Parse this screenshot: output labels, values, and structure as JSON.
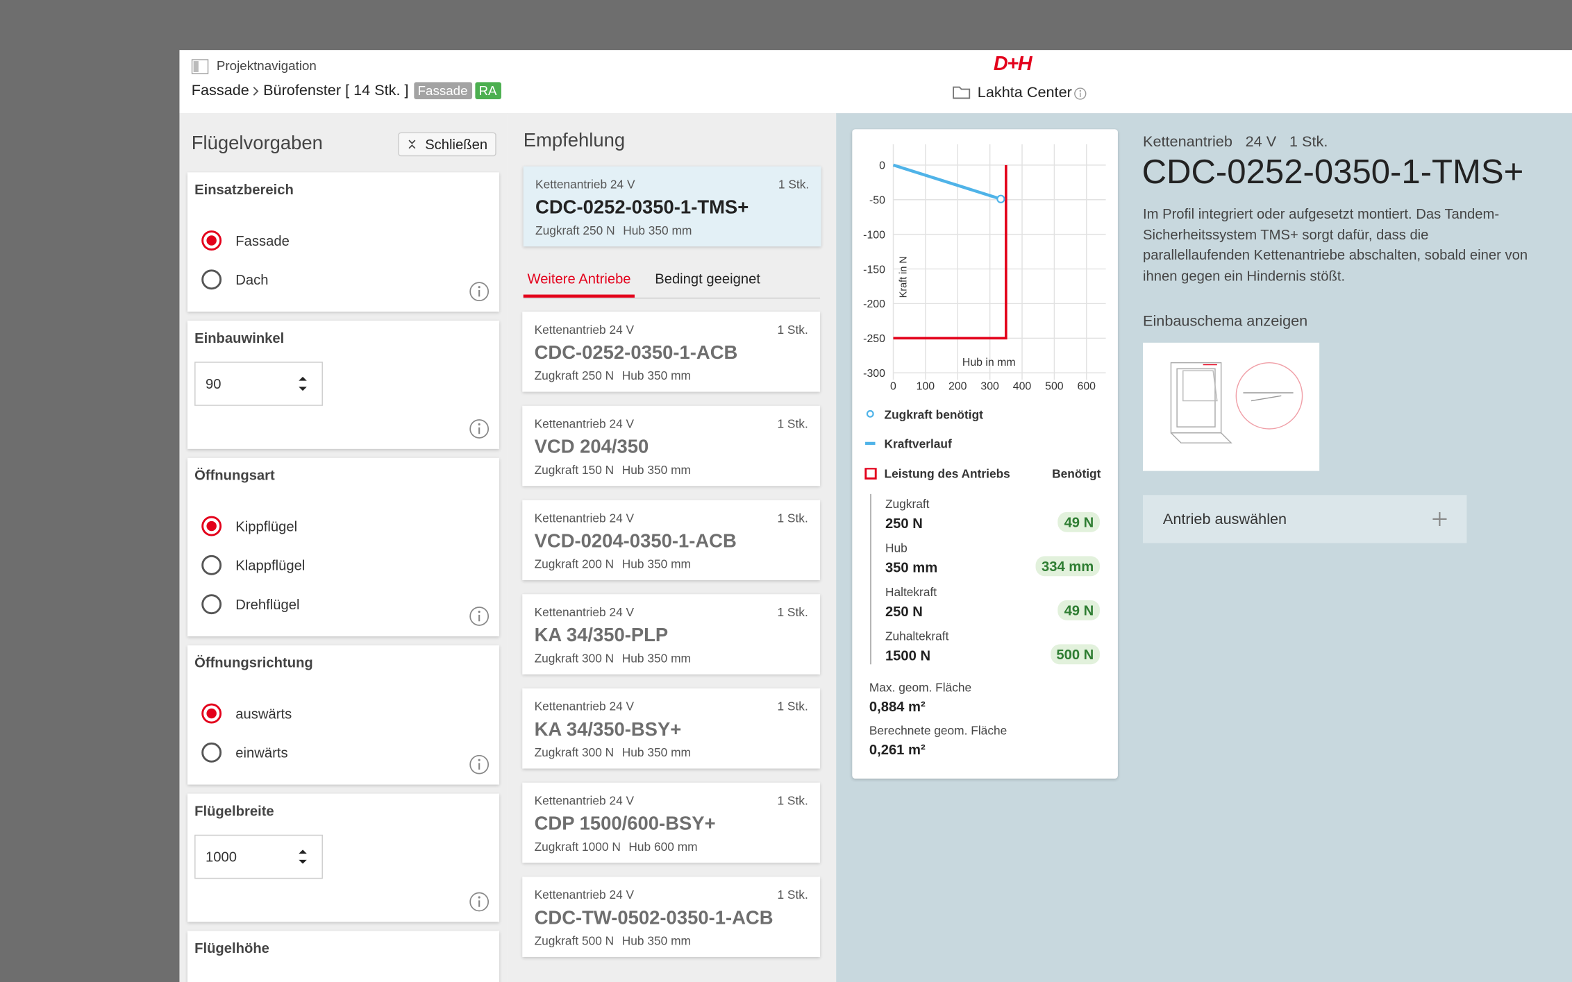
{
  "header": {
    "nav_label": "Projektnavigation",
    "breadcrumb": [
      "Fassade",
      "Bürofenster [ 14 Stk. ]"
    ],
    "tags": [
      {
        "label": "Fassade",
        "color": "#a3a3a3"
      },
      {
        "label": "RA",
        "color": "#4caf50"
      }
    ],
    "logo": "D+H",
    "project": "Lakhta Center"
  },
  "sidebar": {
    "title": "Flügelvorgaben",
    "close_button": "Schließen",
    "sections": [
      {
        "title": "Einsatzbereich",
        "options": [
          "Fassade",
          "Dach"
        ],
        "selected": 0
      },
      {
        "title": "Einbauwinkel",
        "input": "90"
      },
      {
        "title": "Öffnungsart",
        "options": [
          "Kippflügel",
          "Klappflügel",
          "Drehflügel"
        ],
        "selected": 0
      },
      {
        "title": "Öffnungsrichtung",
        "options": [
          "auswärts",
          "einwärts"
        ],
        "selected": 0
      },
      {
        "title": "Flügelbreite",
        "input": "1000"
      },
      {
        "title": "Flügelhöhe"
      }
    ]
  },
  "recommendation": {
    "title": "Empfehlung",
    "item": {
      "type": "Kettenantrieb 24 V",
      "quantity": "1 Stk.",
      "name": "CDC-0252-0350-1-TMS+",
      "pull": "Zugkraft 250 N",
      "stroke": "Hub 350 mm"
    }
  },
  "tabs": {
    "items": [
      "Weitere Antriebe",
      "Bedingt geeignet"
    ],
    "active": 0
  },
  "drives": [
    {
      "type": "Kettenantrieb 24 V",
      "quantity": "1 Stk.",
      "name": "CDC-0252-0350-1-ACB",
      "pull": "Zugkraft 250 N",
      "stroke": "Hub 350 mm"
    },
    {
      "type": "Kettenantrieb 24 V",
      "quantity": "1 Stk.",
      "name": "VCD 204/350",
      "pull": "Zugkraft 150 N",
      "stroke": "Hub 350 mm"
    },
    {
      "type": "Kettenantrieb 24 V",
      "quantity": "1 Stk.",
      "name": "VCD-0204-0350-1-ACB",
      "pull": "Zugkraft 200 N",
      "stroke": "Hub 350 mm"
    },
    {
      "type": "Kettenantrieb 24 V",
      "quantity": "1 Stk.",
      "name": "KA 34/350-PLP",
      "pull": "Zugkraft 300 N",
      "stroke": "Hub 350 mm"
    },
    {
      "type": "Kettenantrieb 24 V",
      "quantity": "1 Stk.",
      "name": "KA 34/350-BSY+",
      "pull": "Zugkraft 300 N",
      "stroke": "Hub 350 mm"
    },
    {
      "type": "Kettenantrieb 24 V",
      "quantity": "1 Stk.",
      "name": "CDP 1500/600-BSY+",
      "pull": "Zugkraft 1000 N",
      "stroke": "Hub 600 mm"
    },
    {
      "type": "Kettenantrieb 24 V",
      "quantity": "1 Stk.",
      "name": "CDC-TW-0502-0350-1-ACB",
      "pull": "Zugkraft 500 N",
      "stroke": "Hub 350 mm"
    }
  ],
  "chart_data": {
    "type": "line",
    "x_label": "Hub in mm",
    "y_label": "Kraft in N",
    "xlim": [
      0,
      660
    ],
    "xticks": [
      0,
      100,
      200,
      300,
      400,
      500,
      600
    ],
    "ylim": [
      -310,
      30
    ],
    "yticks": [
      0,
      -50,
      -100,
      -150,
      -200,
      -250,
      -300
    ],
    "grid": true,
    "series": [
      {
        "name": "Zugkraft benötigt",
        "color": "#4fb3e8",
        "style": "marker",
        "x": [
          334
        ],
        "values": [
          -49
        ]
      },
      {
        "name": "Kraftverlauf",
        "color": "#4fb3e8",
        "style": "line",
        "x": [
          0,
          334
        ],
        "values": [
          0,
          -49
        ]
      },
      {
        "name": "Leistung des Antriebs",
        "color": "#e3001b",
        "style": "line",
        "x": [
          0,
          350,
          350
        ],
        "values": [
          -250,
          -250,
          0
        ]
      }
    ]
  },
  "performance": {
    "needed_label": "Benötigt",
    "rows": [
      {
        "label": "Zugkraft",
        "value": "250 N",
        "needed": "49 N"
      },
      {
        "label": "Hub",
        "value": "350 mm",
        "needed": "334 mm"
      },
      {
        "label": "Haltekraft",
        "value": "250 N",
        "needed": "49 N"
      },
      {
        "label": "Zuhaltekraft",
        "value": "1500 N",
        "needed": "500 N"
      }
    ],
    "areas": [
      {
        "label": "Max. geom. Fläche",
        "value": "0,884 m²"
      },
      {
        "label": "Berechnete geom. Fläche",
        "value": "0,261 m²"
      }
    ]
  },
  "detail": {
    "type": "Kettenantrieb",
    "voltage": "24 V",
    "quantity": "1 Stk.",
    "name": "CDC-0252-0350-1-TMS+",
    "description": "Im Profil integriert oder aufgesetzt montiert. Das Tandem-Sicherheitssystem TMS+ sorgt dafür, dass die parallellaufenden Kettenantriebe abschalten, sobald einer von ihnen gegen ein Hindernis stößt.",
    "schema_label": "Einbauschema anzeigen",
    "select_button": "Antrieb auswählen"
  }
}
